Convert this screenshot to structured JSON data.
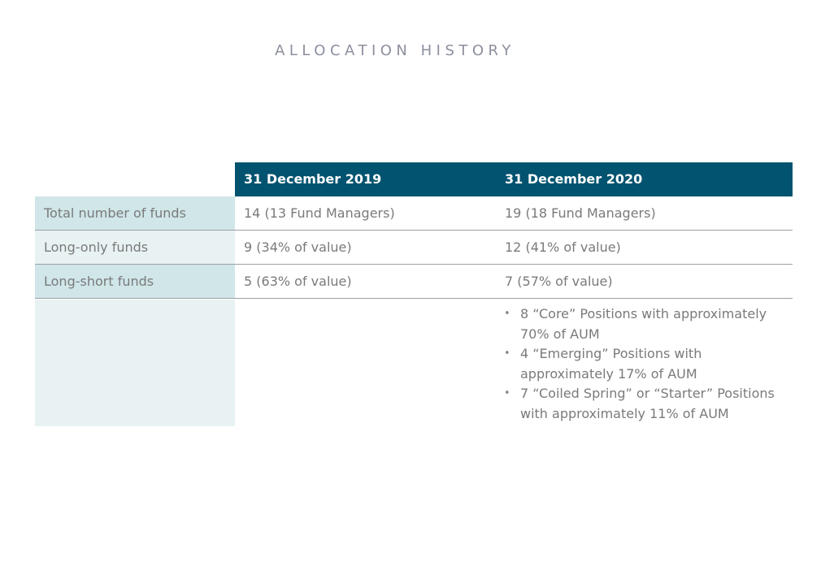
{
  "title": "ALLOCATION HISTORY",
  "table": {
    "headers": [
      "31 December 2019",
      "31 December 2020"
    ],
    "rows": [
      {
        "label": "Total number of funds",
        "c2019": "14 (13 Fund Managers)",
        "c2020": "19 (18 Fund Managers)"
      },
      {
        "label": "Long-only funds",
        "c2019": "9 (34% of value)",
        "c2020": "12 (41% of value)"
      },
      {
        "label": "Long-short funds",
        "c2019": "5 (63% of value)",
        "c2020": "7 (57% of value)"
      }
    ],
    "bullets": [
      "8 “Core” Positions with approximately 70% of AUM",
      "4 “Emerging” Positions with approximately  17% of AUM",
      "7 “Coiled Spring” or “Starter” Positions with approximately 11% of AUM"
    ],
    "bullet_glyph": "•"
  },
  "colors": {
    "header_bg": "#02536f",
    "label_bg_dark": "#d0e6e9",
    "label_bg_light": "#e8f2f3",
    "text": "#7a7a7a",
    "title": "#8c8f9e"
  }
}
